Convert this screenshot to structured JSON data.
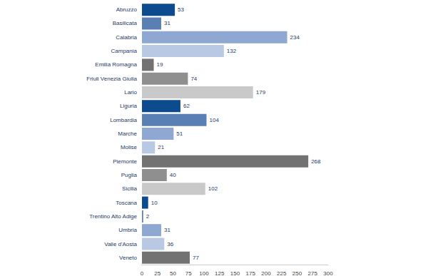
{
  "chart_data": {
    "type": "bar",
    "orientation": "horizontal",
    "categories": [
      "Abruzzo",
      "Basilicata",
      "Calabria",
      "Campania",
      "Emilia Romagna",
      "Friuli Venezia Giulia",
      "Lario",
      "Liguria",
      "Lombardia",
      "Marche",
      "Molise",
      "Piemonte",
      "Puglia",
      "Sicilia",
      "Toscana",
      "Trentino Alto Adige",
      "Umbria",
      "Valle d'Aosta",
      "Veneto"
    ],
    "values": [
      53,
      31,
      234,
      132,
      19,
      74,
      179,
      62,
      104,
      51,
      21,
      268,
      40,
      102,
      10,
      2,
      31,
      36,
      77
    ],
    "colors": [
      "#0b4b8e",
      "#5a7fb4",
      "#8ea8d2",
      "#b9c9e3",
      "#727272",
      "#8f8f8f",
      "#c9c9c9",
      "#0b4b8e",
      "#5a7fb4",
      "#8ea8d2",
      "#b9c9e3",
      "#727272",
      "#8f8f8f",
      "#c9c9c9",
      "#0b4b8e",
      "#5a7fb4",
      "#8ea8d2",
      "#b9c9e3",
      "#727272"
    ],
    "xlim": [
      0,
      300
    ],
    "xticks": [
      0,
      25,
      50,
      75,
      100,
      125,
      150,
      175,
      200,
      225,
      250,
      275,
      300
    ],
    "data_labels": true,
    "grid": false
  }
}
